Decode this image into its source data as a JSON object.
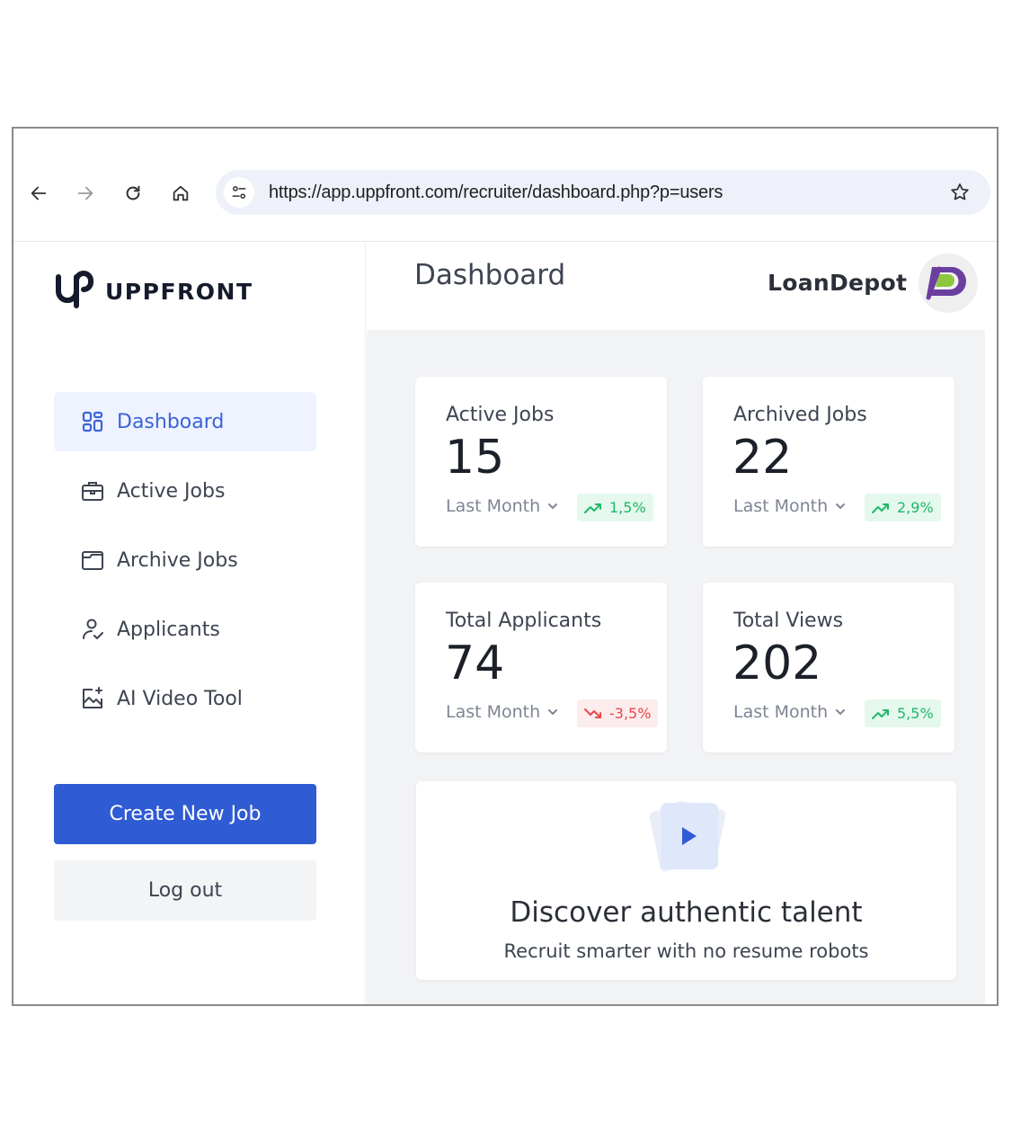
{
  "browser": {
    "url": "https://app.uppfront.com/recruiter/dashboard.php?p=users"
  },
  "sidebar": {
    "brand": "UPPFRONT",
    "items": [
      {
        "label": "Dashboard",
        "icon": "dashboard-grid-icon",
        "active": true
      },
      {
        "label": "Active Jobs",
        "icon": "briefcase-icon",
        "active": false
      },
      {
        "label": "Archive Jobs",
        "icon": "folder-icon",
        "active": false
      },
      {
        "label": "Applicants",
        "icon": "user-check-icon",
        "active": false
      },
      {
        "label": "AI Video Tool",
        "icon": "image-sparkle-icon",
        "active": false
      }
    ],
    "create_label": "Create New Job",
    "logout_label": "Log out"
  },
  "header": {
    "title": "Dashboard",
    "company": "LoanDepot"
  },
  "stats": [
    {
      "title": "Active Jobs",
      "value": "15",
      "period": "Last Month",
      "change": "1,5%",
      "trend": "up"
    },
    {
      "title": "Archived Jobs",
      "value": "22",
      "period": "Last Month",
      "change": "2,9%",
      "trend": "up"
    },
    {
      "title": "Total Applicants",
      "value": "74",
      "period": "Last Month",
      "change": "-3,5%",
      "trend": "down"
    },
    {
      "title": "Total Views",
      "value": "202",
      "period": "Last Month",
      "change": "5,5%",
      "trend": "up"
    }
  ],
  "promo": {
    "title": "Discover authentic talent",
    "subtitle": "Recruit smarter with no resume robots"
  },
  "colors": {
    "primary": "#2f5bd3",
    "active_bg": "#eef3ff",
    "positive": "#1fb86a",
    "negative": "#e5484d",
    "main_bg": "#f2f3f5"
  }
}
